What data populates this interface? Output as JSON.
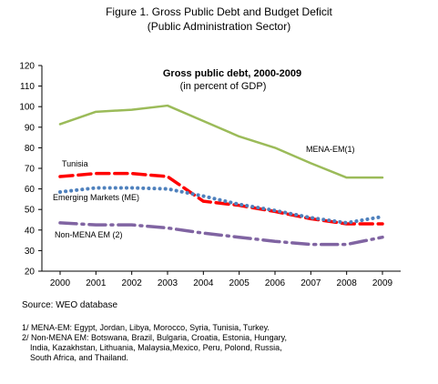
{
  "figure_title": "Figure 1. Gross Public Debt and Budget Deficit",
  "figure_subtitle": "(Public Administration Sector)",
  "source": "Source: WEO database",
  "notes": [
    "1/ MENA-EM: Egypt, Jordan, Libya, Morocco, Syria, Tunisia, Turkey.",
    "2/ Non-MENA EM: Botswana, Brazil, Bulgaria, Croatia, Estonia, Hungary,",
    "India, Kazakhstan, Lithuania, Malaysia,Mexico, Peru, Polond, Russia,",
    "South Africa, and Thailand."
  ],
  "chart_data": {
    "type": "line",
    "title": "Gross public debt, 2000-2009",
    "subtitle": "(in percent of GDP)",
    "xlabel": "",
    "ylabel": "",
    "x": [
      "2000",
      "2001",
      "2002",
      "2003",
      "2004",
      "2005",
      "2006",
      "2007",
      "2008",
      "2009"
    ],
    "ylim": [
      20,
      120
    ],
    "yticks": [
      20,
      30,
      40,
      50,
      60,
      70,
      80,
      90,
      100,
      110,
      120
    ],
    "grid": false,
    "series": [
      {
        "name": "MENA-EM(1)",
        "color": "#9bbb59",
        "style": "solid",
        "values": [
          91.5,
          97.5,
          98.5,
          100.5,
          93,
          85.5,
          80,
          72.5,
          65.5,
          65.5
        ]
      },
      {
        "name": "Tunisia",
        "color": "#ff0000",
        "style": "dashed",
        "values": [
          66,
          67.5,
          67.5,
          66,
          54,
          52,
          49,
          45.5,
          43,
          43
        ]
      },
      {
        "name": "Emerging Markets (ME)",
        "color": "#4f81bd",
        "style": "dotted",
        "values": [
          58.5,
          60.5,
          60.5,
          60,
          56.5,
          52.5,
          49.5,
          46,
          43.5,
          46.5
        ]
      },
      {
        "name": "Non-MENA EM (2)",
        "color": "#8064a2",
        "style": "dashdot",
        "values": [
          43.5,
          42.5,
          42.5,
          41,
          38.5,
          36.5,
          34.5,
          33,
          33,
          36.5
        ]
      }
    ]
  }
}
